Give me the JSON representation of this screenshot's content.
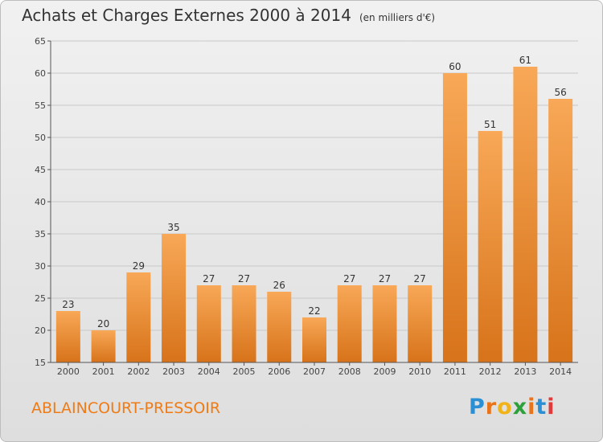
{
  "title": "Achats et Charges Externes 2000 à 2014",
  "unit": "(en milliers d'€)",
  "place": "ABLAINCOURT-PRESSOIR",
  "logo": {
    "text": "Proxiti",
    "letter_colors": [
      "#2a8fd4",
      "#e8731a",
      "#f0b418",
      "#2ca13a",
      "#e8731a",
      "#2a8fd4",
      "#e03a3a"
    ]
  },
  "colors": {
    "bar_top": "#f8a857",
    "bar_bottom": "#d7731a",
    "accent": "#ef7b16"
  },
  "chart_data": {
    "type": "bar",
    "categories": [
      "2000",
      "2001",
      "2002",
      "2003",
      "2004",
      "2005",
      "2006",
      "2007",
      "2008",
      "2009",
      "2010",
      "2011",
      "2012",
      "2013",
      "2014"
    ],
    "values": [
      23,
      20,
      29,
      35,
      27,
      27,
      26,
      22,
      27,
      27,
      27,
      60,
      51,
      61,
      56
    ],
    "ylim": [
      15,
      65
    ],
    "yticks": [
      15,
      20,
      25,
      30,
      35,
      40,
      45,
      50,
      55,
      60,
      65
    ],
    "grid": true
  }
}
